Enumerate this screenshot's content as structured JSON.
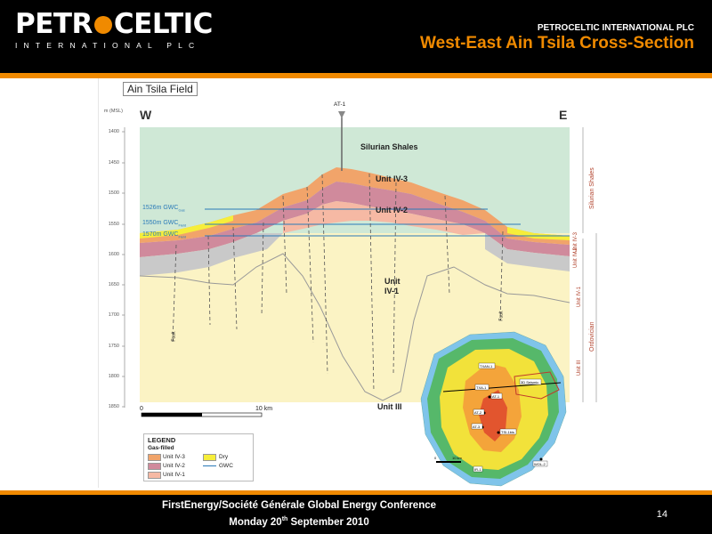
{
  "header": {
    "logo_text_a": "PETR",
    "logo_text_b": "CELTIC",
    "logo_sub": "INTERNATIONAL PLC",
    "company": "PETROCELTIC INTERNATIONAL PLC",
    "title": "West-East Ain Tsila Cross-Section"
  },
  "figure": {
    "field_name": "Ain Tsila Field",
    "depth_unit": "m (MSL)",
    "depth_ticks": [
      "1400",
      "1450",
      "1500",
      "1550",
      "1600",
      "1650",
      "1700",
      "1750",
      "1800",
      "1850"
    ],
    "west_label": "W",
    "east_label": "E",
    "well_label": "AT-1",
    "silurian_label": "Silurian Shales",
    "unit_iv3": "Unit IV-3",
    "unit_iv2": "Unit IV-2",
    "unit_iv1_line1": "Unit",
    "unit_iv1_line2": "IV-1",
    "unit_iii": "Unit III",
    "gwc": [
      {
        "depth": "1526m GWC",
        "sub": "Gas"
      },
      {
        "depth": "1550m GWC",
        "sub": "Field"
      },
      {
        "depth": "1570m GWC",
        "sub": "Field"
      }
    ],
    "fault_label": "Fault",
    "scale_start": "0",
    "scale_end": "10 km",
    "side_silurian": "Silurian Shales",
    "side_iv3": "Unit IV-3",
    "side_iv2": "Unit IV-2",
    "side_iv1": "Unit IV-1",
    "side_ordovician": "Ordovician",
    "side_iii": "Unit III"
  },
  "legend": {
    "title": "LEGEND",
    "subtitle": "Gas-filled",
    "items": [
      {
        "label": "Unit IV-3",
        "color": "#f1a46a"
      },
      {
        "label": "Unit IV-2",
        "color": "#d08a9c"
      },
      {
        "label": "Unit IV-1",
        "color": "#f6b9a4"
      },
      {
        "label": "Dry",
        "color": "#f6ee3a"
      },
      {
        "label": "GWC",
        "color": "#2a7ab8"
      }
    ]
  },
  "map": {
    "labels": [
      "TXAN-1",
      "TXA-1",
      "AT-1",
      "AT-2",
      "AT-3",
      "TSI-1bis",
      "IR-1",
      "WOL-2",
      "3D Seismic"
    ],
    "scale": "10 km",
    "scale_start": "0"
  },
  "footer": {
    "conference": "FirstEnergy/Société Générale  Global Energy Conference",
    "date_prefix": "Monday 20",
    "date_sup": "th",
    "date_suffix": " September 2010",
    "page": "14"
  }
}
